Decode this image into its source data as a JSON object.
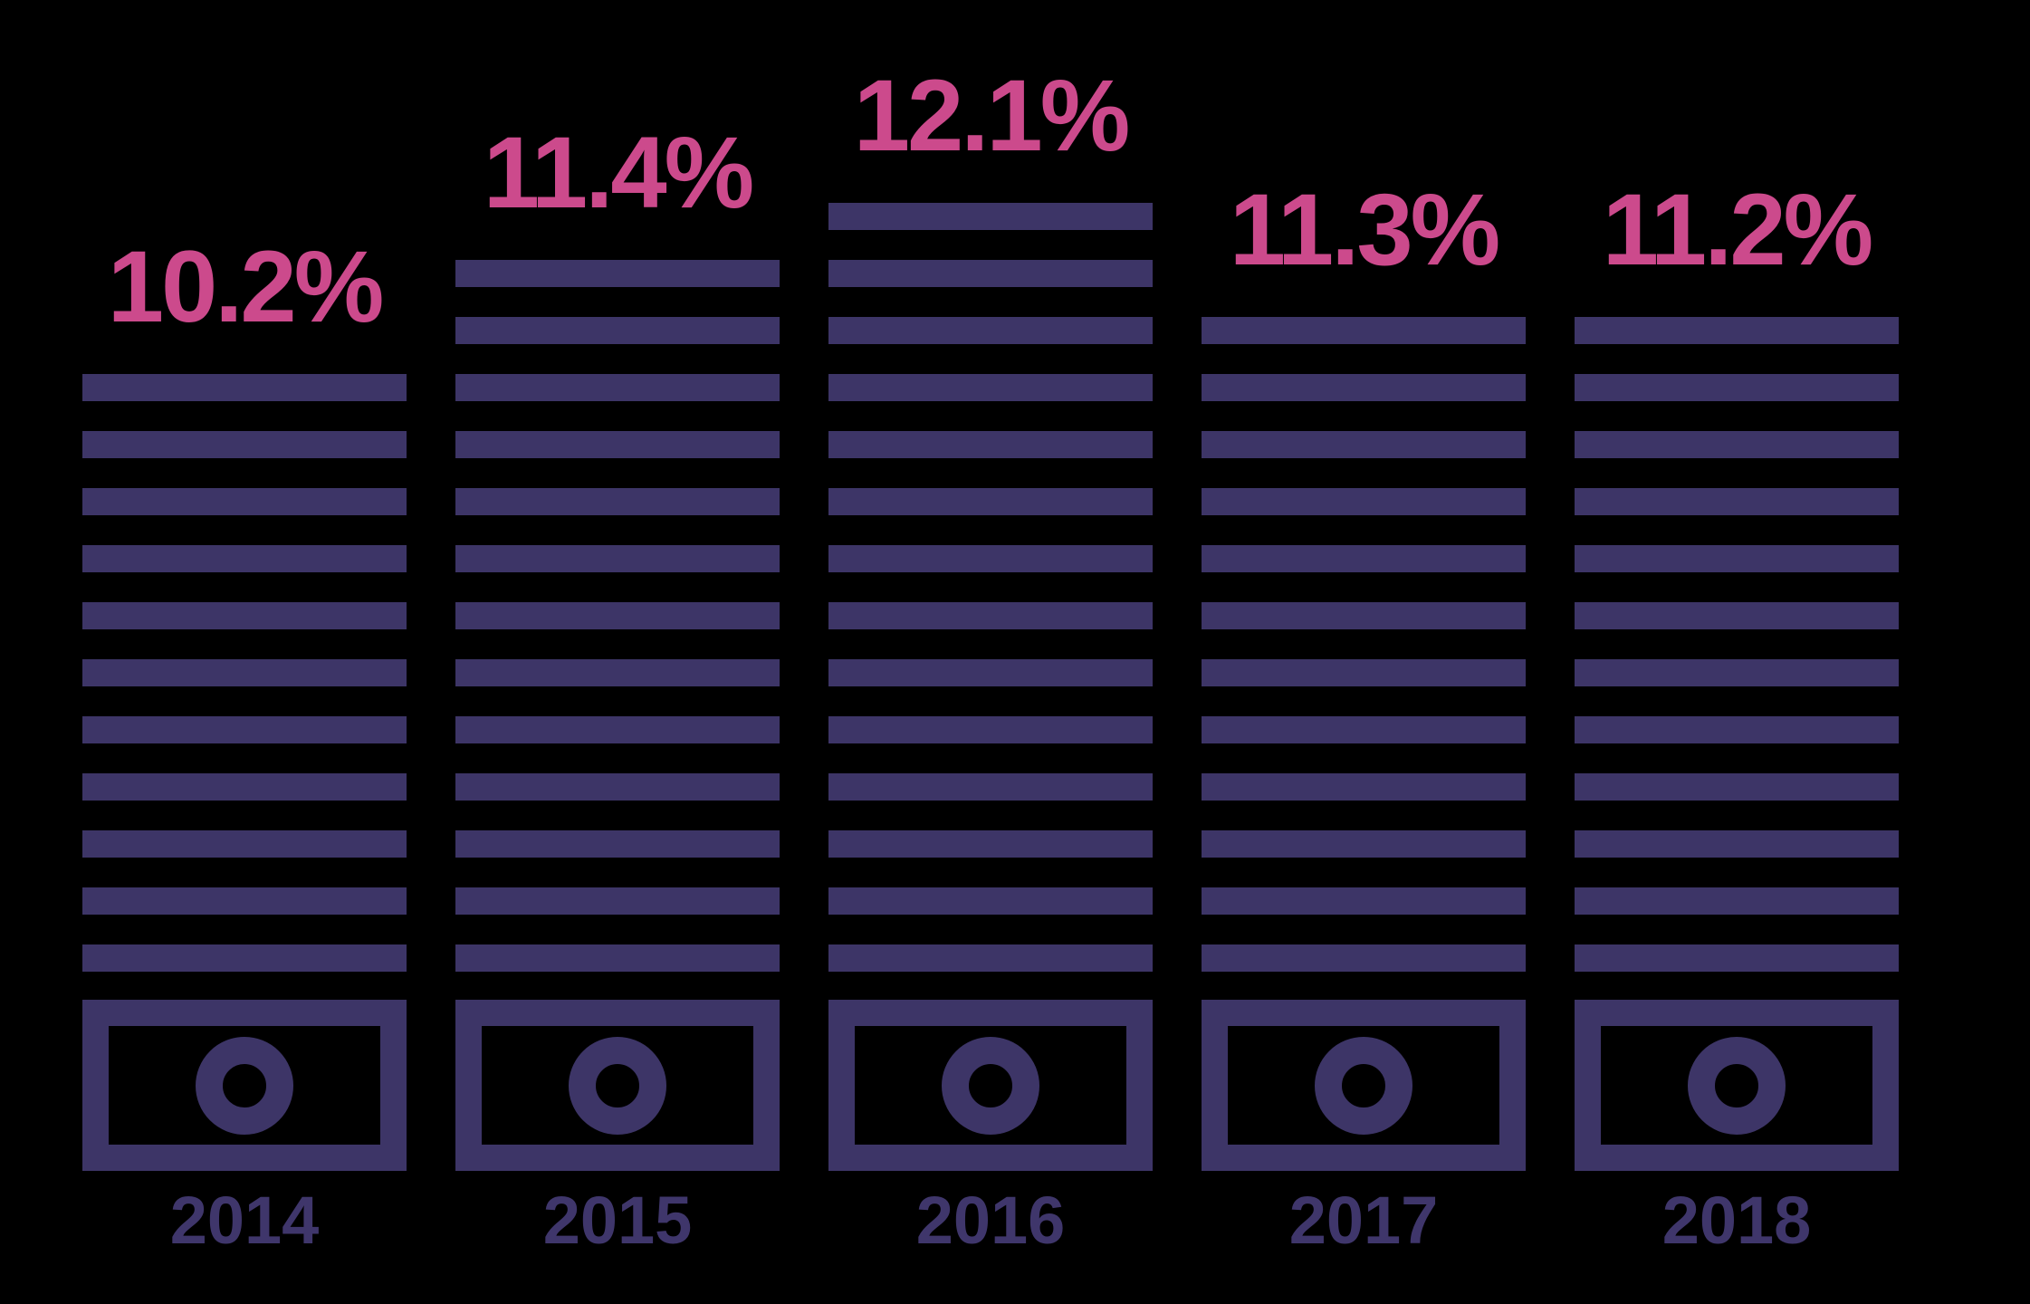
{
  "chart_data": {
    "type": "bar",
    "title": "",
    "xlabel": "",
    "ylabel": "",
    "unit": "%",
    "categories": [
      "2014",
      "2015",
      "2016",
      "2017",
      "2018"
    ],
    "values": [
      10.2,
      11.4,
      12.1,
      11.3,
      11.2
    ],
    "value_labels": [
      "10.2%",
      "11.4%",
      "12.1%",
      "11.3%",
      "11.2%"
    ],
    "ylim": [
      0,
      14
    ],
    "grid": false,
    "legend": false,
    "style_note": "each bar rendered as a stack of horizontal stripes above a banknote icon",
    "stripe_counts": [
      11,
      13,
      14,
      12,
      12
    ]
  },
  "columns": [
    {
      "year": "2014",
      "label": "10.2%",
      "stripes": 11
    },
    {
      "year": "2015",
      "label": "11.4%",
      "stripes": 13
    },
    {
      "year": "2016",
      "label": "12.1%",
      "stripes": 14
    },
    {
      "year": "2017",
      "label": "11.3%",
      "stripes": 12
    },
    {
      "year": "2018",
      "label": "11.2%",
      "stripes": 12
    }
  ],
  "colors": {
    "background": "#000000",
    "bar_purple": "#3d3567",
    "value_pink": "#cc4a8c",
    "year_purple": "#3f366b"
  }
}
